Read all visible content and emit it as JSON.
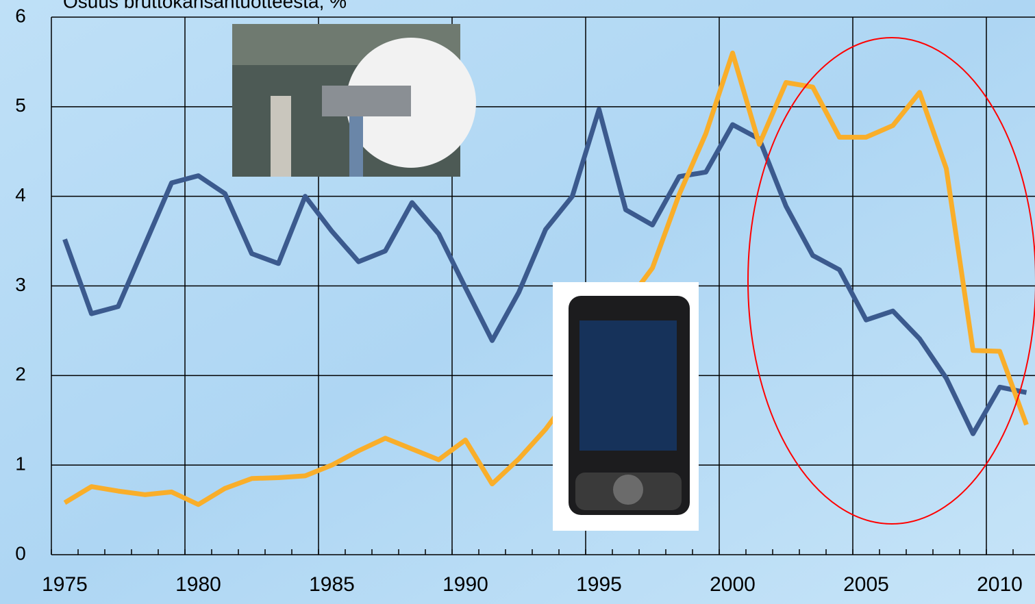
{
  "chart_data": {
    "type": "line",
    "title": "Osuus bruttokansantuotteesta, %",
    "categories": [
      "1975",
      null,
      null,
      null,
      null,
      "1980",
      null,
      null,
      null,
      null,
      "1985",
      null,
      null,
      null,
      null,
      "1990",
      null,
      null,
      null,
      null,
      "1995",
      null,
      null,
      null,
      null,
      "2000",
      null,
      null,
      null,
      null,
      "2005",
      null,
      null,
      null,
      null,
      "2010",
      null
    ],
    "series": [
      {
        "color": "#3b5a8e",
        "values": [
          3.52,
          2.69,
          2.77,
          3.46,
          4.15,
          4.23,
          4.03,
          3.36,
          3.25,
          4.0,
          3.61,
          3.27,
          3.39,
          3.93,
          3.58,
          2.98,
          2.39,
          2.93,
          3.63,
          4.0,
          4.97,
          3.85,
          3.68,
          4.22,
          4.27,
          4.8,
          4.64,
          3.89,
          3.34,
          3.18,
          2.62,
          2.72,
          2.41,
          1.97,
          1.35,
          1.87,
          1.81
        ]
      },
      {
        "color": "#f9ae2a",
        "values": [
          0.58,
          0.76,
          0.71,
          0.67,
          0.7,
          0.56,
          0.74,
          0.85,
          0.86,
          0.88,
          1.0,
          1.16,
          1.3,
          1.18,
          1.06,
          1.28,
          0.79,
          1.07,
          1.4,
          1.8,
          2.3,
          2.8,
          3.2,
          4.02,
          4.7,
          5.6,
          4.58,
          5.27,
          5.22,
          4.66,
          4.66,
          4.79,
          5.16,
          4.31,
          2.28,
          2.27,
          1.45
        ]
      }
    ],
    "ylim": [
      0,
      6
    ],
    "yticks": [
      0,
      1,
      2,
      3,
      4,
      5,
      6
    ],
    "grid": true
  }
}
